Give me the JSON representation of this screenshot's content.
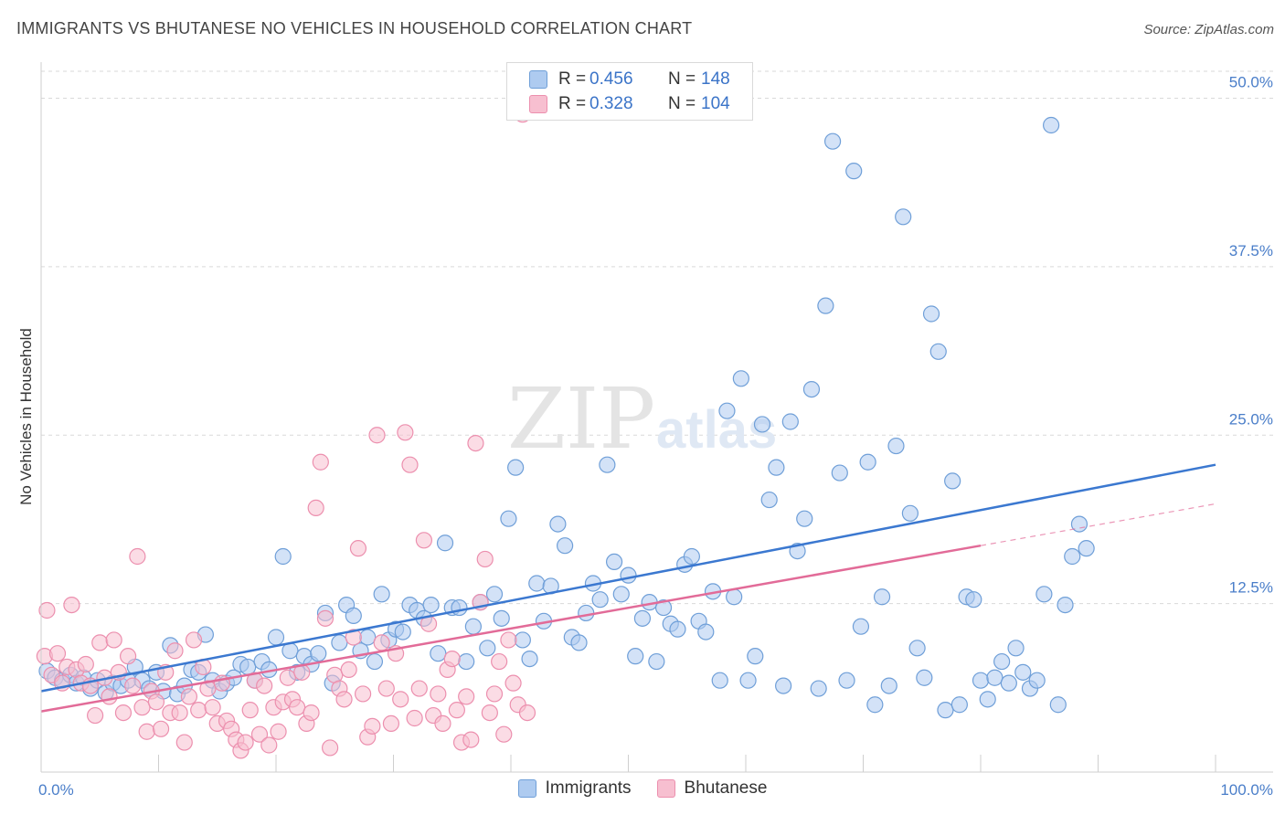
{
  "title": "IMMIGRANTS VS BHUTANESE NO VEHICLES IN HOUSEHOLD CORRELATION CHART",
  "source": "Source: ZipAtlas.com",
  "watermark": {
    "zip": "ZIP",
    "atlas": "atlas"
  },
  "legend": {
    "rows": [
      {
        "r_label": "R =",
        "r_value": "0.456",
        "n_label": "N =",
        "n_value": "148"
      },
      {
        "r_label": "R =",
        "r_value": "0.328",
        "n_label": "N =",
        "n_value": "104"
      }
    ]
  },
  "bottom_legend": [
    "Immigrants",
    "Bhutanese"
  ],
  "colors": {
    "immigrants_fill": "#aecbf0",
    "immigrants_stroke": "#6f9fd8",
    "immigrants_line": "#3b78d0",
    "bhutanese_fill": "#f7bfd0",
    "bhutanese_stroke": "#ec8fae",
    "bhutanese_line": "#e26b98",
    "tick_text": "#4a7ec9",
    "grid": "#d9d9d9"
  },
  "chart_data": {
    "type": "scatter",
    "title": "IMMIGRANTS VS BHUTANESE NO VEHICLES IN HOUSEHOLD CORRELATION CHART",
    "xlabel": "",
    "ylabel": "No Vehicles in Household",
    "xlim": [
      0,
      100
    ],
    "ylim": [
      0,
      52
    ],
    "x_tick_labels": [
      "0.0%",
      "100.0%"
    ],
    "y_ticks": [
      12.5,
      25.0,
      37.5,
      50.0
    ],
    "y_tick_labels": [
      "12.5%",
      "25.0%",
      "37.5%",
      "50.0%"
    ],
    "grid": true,
    "legend_position": "top-center",
    "series": [
      {
        "name": "Immigrants",
        "r": 0.456,
        "n": 148,
        "trend": {
          "x": [
            0,
            100
          ],
          "y": [
            6.0,
            22.8
          ]
        },
        "points": [
          [
            0.5,
            7.5
          ],
          [
            1.2,
            7.0
          ],
          [
            1.8,
            6.8
          ],
          [
            2.5,
            7.2
          ],
          [
            3.0,
            6.6
          ],
          [
            3.6,
            7.0
          ],
          [
            4.2,
            6.2
          ],
          [
            4.8,
            6.8
          ],
          [
            5.5,
            5.9
          ],
          [
            6.1,
            6.6
          ],
          [
            6.8,
            6.4
          ],
          [
            7.4,
            6.8
          ],
          [
            8.0,
            7.8
          ],
          [
            8.6,
            6.8
          ],
          [
            9.2,
            6.2
          ],
          [
            9.8,
            7.4
          ],
          [
            10.4,
            6.0
          ],
          [
            11.0,
            9.4
          ],
          [
            11.6,
            5.8
          ],
          [
            12.2,
            6.4
          ],
          [
            12.8,
            7.6
          ],
          [
            13.4,
            7.4
          ],
          [
            14.0,
            10.2
          ],
          [
            14.6,
            6.8
          ],
          [
            15.2,
            6.0
          ],
          [
            15.8,
            6.6
          ],
          [
            16.4,
            7.0
          ],
          [
            17.0,
            8.0
          ],
          [
            17.6,
            7.8
          ],
          [
            18.2,
            6.8
          ],
          [
            18.8,
            8.2
          ],
          [
            19.4,
            7.6
          ],
          [
            20.0,
            10.0
          ],
          [
            20.6,
            16.0
          ],
          [
            21.2,
            9.0
          ],
          [
            21.8,
            7.4
          ],
          [
            22.4,
            8.6
          ],
          [
            23.0,
            8.0
          ],
          [
            23.6,
            8.8
          ],
          [
            24.2,
            11.8
          ],
          [
            24.8,
            6.6
          ],
          [
            25.4,
            9.6
          ],
          [
            26.0,
            12.4
          ],
          [
            26.6,
            11.6
          ],
          [
            27.2,
            9.0
          ],
          [
            27.8,
            10.0
          ],
          [
            28.4,
            8.2
          ],
          [
            29.0,
            13.2
          ],
          [
            29.6,
            9.8
          ],
          [
            30.2,
            10.6
          ],
          [
            30.8,
            10.4
          ],
          [
            31.4,
            12.4
          ],
          [
            32.0,
            12.0
          ],
          [
            32.6,
            11.4
          ],
          [
            33.2,
            12.4
          ],
          [
            33.8,
            8.8
          ],
          [
            34.4,
            17.0
          ],
          [
            35.0,
            12.2
          ],
          [
            35.6,
            12.2
          ],
          [
            36.2,
            8.2
          ],
          [
            36.8,
            10.8
          ],
          [
            37.4,
            12.6
          ],
          [
            38.0,
            9.2
          ],
          [
            38.6,
            13.2
          ],
          [
            39.2,
            11.4
          ],
          [
            39.8,
            18.8
          ],
          [
            40.4,
            22.6
          ],
          [
            41.0,
            9.8
          ],
          [
            41.6,
            8.4
          ],
          [
            42.2,
            14.0
          ],
          [
            42.8,
            11.2
          ],
          [
            43.4,
            13.8
          ],
          [
            44.0,
            18.4
          ],
          [
            44.6,
            16.8
          ],
          [
            45.2,
            10.0
          ],
          [
            45.8,
            9.6
          ],
          [
            46.4,
            11.8
          ],
          [
            47.0,
            14.0
          ],
          [
            47.6,
            12.8
          ],
          [
            48.2,
            22.8
          ],
          [
            48.8,
            15.6
          ],
          [
            49.4,
            13.2
          ],
          [
            50.0,
            14.6
          ],
          [
            50.6,
            8.6
          ],
          [
            51.2,
            11.4
          ],
          [
            51.8,
            12.6
          ],
          [
            52.4,
            8.2
          ],
          [
            53.0,
            12.2
          ],
          [
            53.6,
            11.0
          ],
          [
            54.2,
            10.6
          ],
          [
            54.8,
            15.4
          ],
          [
            55.4,
            16.0
          ],
          [
            56.0,
            11.2
          ],
          [
            56.6,
            10.4
          ],
          [
            57.2,
            13.4
          ],
          [
            57.8,
            6.8
          ],
          [
            58.4,
            26.8
          ],
          [
            59.0,
            13.0
          ],
          [
            59.6,
            29.2
          ],
          [
            60.2,
            6.8
          ],
          [
            60.8,
            8.6
          ],
          [
            61.4,
            25.8
          ],
          [
            62.0,
            20.2
          ],
          [
            62.6,
            22.6
          ],
          [
            63.2,
            6.4
          ],
          [
            63.8,
            26.0
          ],
          [
            64.4,
            16.4
          ],
          [
            65.0,
            18.8
          ],
          [
            65.6,
            28.4
          ],
          [
            66.2,
            6.2
          ],
          [
            66.8,
            34.6
          ],
          [
            67.4,
            46.8
          ],
          [
            68.0,
            22.2
          ],
          [
            68.6,
            6.8
          ],
          [
            69.2,
            44.6
          ],
          [
            69.8,
            10.8
          ],
          [
            70.4,
            23.0
          ],
          [
            71.0,
            5.0
          ],
          [
            71.6,
            13.0
          ],
          [
            72.2,
            6.4
          ],
          [
            72.8,
            24.2
          ],
          [
            73.4,
            41.2
          ],
          [
            74.0,
            19.2
          ],
          [
            74.6,
            9.2
          ],
          [
            75.2,
            7.0
          ],
          [
            75.8,
            34.0
          ],
          [
            76.4,
            31.2
          ],
          [
            77.0,
            4.6
          ],
          [
            77.6,
            21.6
          ],
          [
            78.2,
            5.0
          ],
          [
            78.8,
            13.0
          ],
          [
            79.4,
            12.8
          ],
          [
            80.0,
            6.8
          ],
          [
            80.6,
            5.4
          ],
          [
            81.2,
            7.0
          ],
          [
            81.8,
            8.2
          ],
          [
            82.4,
            6.6
          ],
          [
            83.0,
            9.2
          ],
          [
            83.6,
            7.4
          ],
          [
            84.2,
            6.2
          ],
          [
            84.8,
            6.8
          ],
          [
            85.4,
            13.2
          ],
          [
            86.0,
            48.0
          ],
          [
            86.6,
            5.0
          ],
          [
            87.2,
            12.4
          ],
          [
            87.8,
            16.0
          ],
          [
            88.4,
            18.4
          ],
          [
            89.0,
            16.6
          ]
        ]
      },
      {
        "name": "Bhutanese",
        "r": 0.328,
        "n": 104,
        "trend": {
          "x": [
            0,
            80
          ],
          "y": [
            4.5,
            16.8
          ]
        },
        "trend_dashed": {
          "x": [
            80,
            100
          ],
          "y": [
            16.8,
            19.9
          ]
        },
        "points": [
          [
            0.3,
            8.6
          ],
          [
            0.5,
            12.0
          ],
          [
            0.9,
            7.2
          ],
          [
            1.4,
            8.8
          ],
          [
            1.8,
            6.6
          ],
          [
            2.2,
            7.8
          ],
          [
            2.6,
            12.4
          ],
          [
            3.0,
            7.6
          ],
          [
            3.4,
            6.6
          ],
          [
            3.8,
            8.0
          ],
          [
            4.2,
            6.4
          ],
          [
            4.6,
            4.2
          ],
          [
            5.0,
            9.6
          ],
          [
            5.4,
            7.0
          ],
          [
            5.8,
            5.6
          ],
          [
            6.2,
            9.8
          ],
          [
            6.6,
            7.4
          ],
          [
            7.0,
            4.4
          ],
          [
            7.4,
            8.6
          ],
          [
            7.8,
            6.4
          ],
          [
            8.2,
            16.0
          ],
          [
            8.6,
            4.8
          ],
          [
            9.0,
            3.0
          ],
          [
            9.4,
            6.0
          ],
          [
            9.8,
            5.2
          ],
          [
            10.2,
            3.2
          ],
          [
            10.6,
            7.4
          ],
          [
            11.0,
            4.4
          ],
          [
            11.4,
            9.0
          ],
          [
            11.8,
            4.4
          ],
          [
            12.2,
            2.2
          ],
          [
            12.6,
            5.6
          ],
          [
            13.0,
            9.8
          ],
          [
            13.4,
            4.6
          ],
          [
            13.8,
            7.8
          ],
          [
            14.2,
            6.2
          ],
          [
            14.6,
            4.8
          ],
          [
            15.0,
            3.6
          ],
          [
            15.4,
            6.6
          ],
          [
            15.8,
            3.8
          ],
          [
            16.2,
            3.2
          ],
          [
            16.6,
            2.4
          ],
          [
            17.0,
            1.6
          ],
          [
            17.4,
            2.2
          ],
          [
            17.8,
            4.6
          ],
          [
            18.2,
            6.8
          ],
          [
            18.6,
            2.8
          ],
          [
            19.0,
            6.4
          ],
          [
            19.4,
            2.0
          ],
          [
            19.8,
            4.8
          ],
          [
            20.2,
            3.0
          ],
          [
            20.6,
            5.2
          ],
          [
            21.0,
            7.0
          ],
          [
            21.4,
            5.4
          ],
          [
            21.8,
            4.8
          ],
          [
            22.2,
            7.4
          ],
          [
            22.6,
            3.6
          ],
          [
            23.0,
            4.4
          ],
          [
            23.4,
            19.6
          ],
          [
            23.8,
            23.0
          ],
          [
            24.2,
            11.4
          ],
          [
            24.6,
            1.8
          ],
          [
            25.0,
            7.2
          ],
          [
            25.4,
            6.2
          ],
          [
            25.8,
            5.4
          ],
          [
            26.2,
            7.6
          ],
          [
            26.6,
            10.0
          ],
          [
            27.0,
            16.6
          ],
          [
            27.4,
            5.8
          ],
          [
            27.8,
            2.6
          ],
          [
            28.2,
            3.4
          ],
          [
            28.6,
            25.0
          ],
          [
            29.0,
            9.6
          ],
          [
            29.4,
            6.2
          ],
          [
            29.8,
            3.6
          ],
          [
            30.2,
            8.8
          ],
          [
            30.6,
            5.4
          ],
          [
            31.0,
            25.2
          ],
          [
            31.4,
            22.8
          ],
          [
            31.8,
            4.0
          ],
          [
            32.2,
            6.2
          ],
          [
            32.6,
            17.2
          ],
          [
            33.0,
            11.0
          ],
          [
            33.4,
            4.2
          ],
          [
            33.8,
            5.8
          ],
          [
            34.2,
            3.6
          ],
          [
            34.6,
            7.6
          ],
          [
            35.0,
            8.4
          ],
          [
            35.4,
            4.6
          ],
          [
            35.8,
            2.2
          ],
          [
            36.2,
            5.6
          ],
          [
            36.6,
            2.4
          ],
          [
            37.0,
            24.4
          ],
          [
            37.4,
            12.6
          ],
          [
            37.8,
            15.8
          ],
          [
            38.2,
            4.4
          ],
          [
            38.6,
            5.8
          ],
          [
            39.0,
            8.2
          ],
          [
            39.4,
            2.8
          ],
          [
            39.8,
            9.8
          ],
          [
            40.2,
            6.6
          ],
          [
            40.6,
            5.0
          ],
          [
            41.0,
            48.8
          ],
          [
            41.4,
            4.4
          ]
        ]
      }
    ]
  }
}
